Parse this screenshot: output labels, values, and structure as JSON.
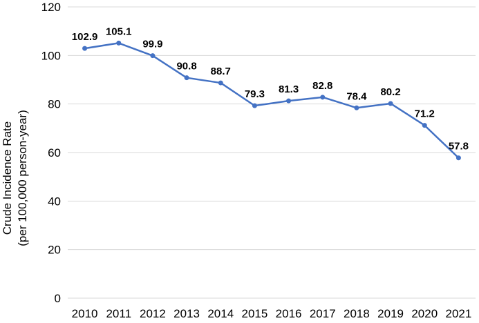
{
  "chart_data": {
    "type": "line",
    "categories": [
      "2010",
      "2011",
      "2012",
      "2013",
      "2014",
      "2015",
      "2016",
      "2017",
      "2018",
      "2019",
      "2020",
      "2021"
    ],
    "series": [
      {
        "values": [
          102.9,
          105.1,
          99.9,
          90.8,
          88.7,
          79.3,
          81.3,
          82.8,
          78.4,
          80.2,
          71.2,
          57.8
        ]
      }
    ],
    "data_labels": [
      "102.9",
      "105.1",
      "99.9",
      "90.8",
      "88.7",
      "79.3",
      "81.3",
      "82.8",
      "78.4",
      "80.2",
      "71.2",
      "57.8"
    ],
    "y_ticks": [
      "0",
      "20",
      "40",
      "60",
      "80",
      "100",
      "120"
    ],
    "ylabel_line1": "Crude Incidence Rate",
    "ylabel_line2": "(per 100,000 person-year)",
    "xlabel": "",
    "title": "",
    "ylim": [
      0,
      120
    ],
    "grid": true,
    "legend": "none",
    "line_color": "#4472C4",
    "grid_color": "#D9D9D9"
  }
}
